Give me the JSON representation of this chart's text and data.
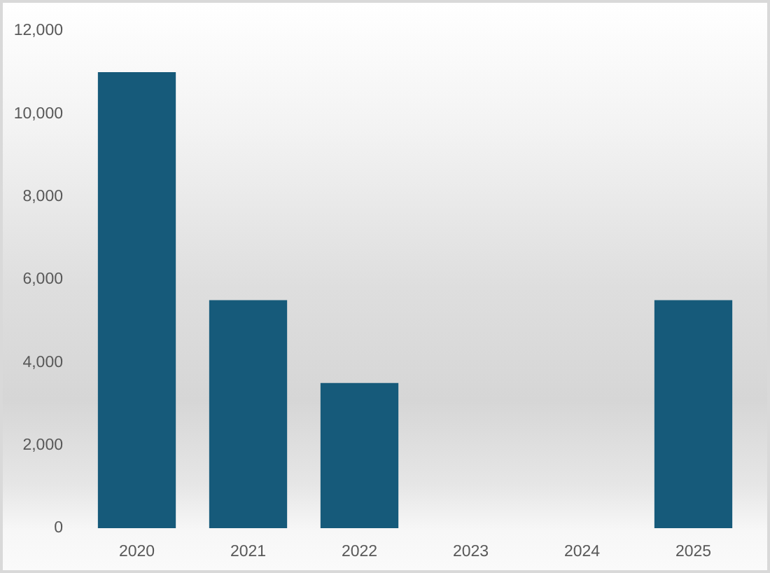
{
  "chart_data": {
    "type": "bar",
    "categories": [
      "2020",
      "2021",
      "2022",
      "2023",
      "2024",
      "2025"
    ],
    "values": [
      11000,
      5500,
      3500,
      0,
      0,
      5500
    ],
    "color": "#165a7a",
    "ylim": [
      0,
      12000
    ],
    "yticks": [
      0,
      {
        "value": 2000,
        "label": "2,000"
      },
      {
        "value": 4000,
        "label": "4,000"
      },
      {
        "value": 6000,
        "label": "6,000"
      },
      {
        "value": 8000,
        "label": "8,000"
      },
      {
        "value": 10000,
        "label": "10,000"
      },
      {
        "value": 12000,
        "label": "12,000"
      }
    ],
    "grid": false,
    "legend": false
  }
}
